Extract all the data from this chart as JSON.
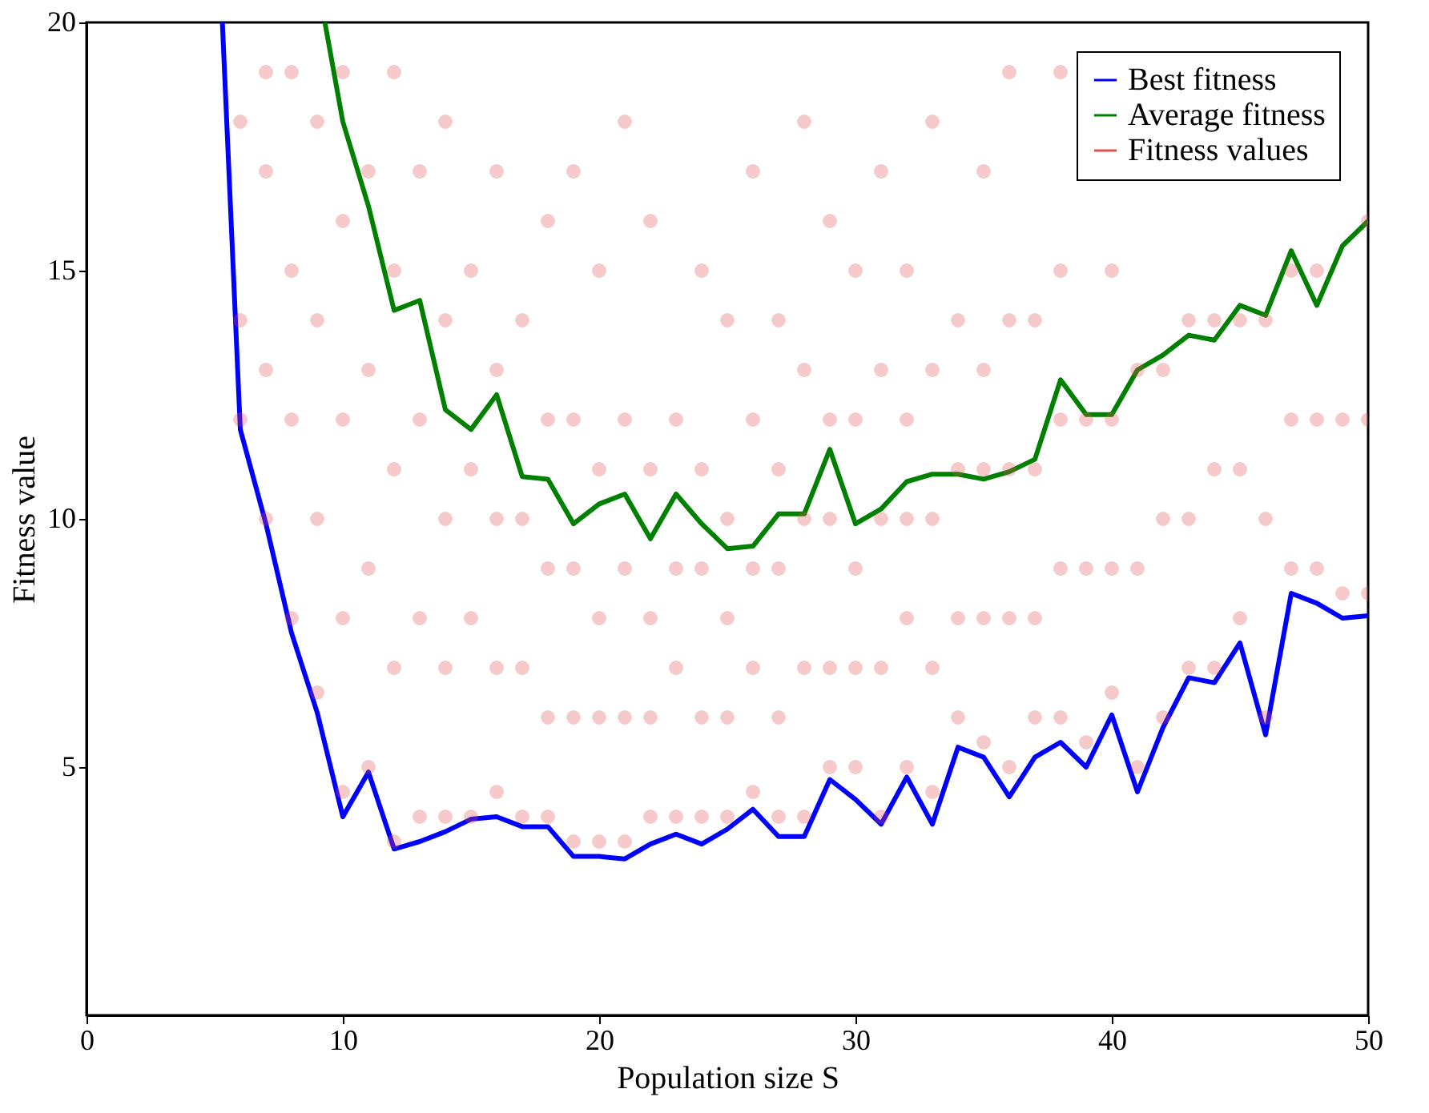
{
  "chart_data": {
    "type": "line",
    "xlabel": "Population size S",
    "ylabel": "Fitness value",
    "xlim": [
      0,
      50
    ],
    "xticks": [
      0,
      10,
      20,
      30,
      40,
      50
    ],
    "ylim": [
      0,
      20
    ],
    "yticks": [
      5,
      10,
      15,
      20
    ],
    "grid": false,
    "legend": "top right",
    "marker": "none",
    "line_style": "solid",
    "series": [
      {
        "name": "Best fitness",
        "type": "line",
        "color": "#0000ff",
        "x": [
          5.3,
          6,
          7,
          8,
          9,
          10,
          11,
          12,
          13,
          14,
          15,
          16,
          17,
          18,
          19,
          20,
          21,
          22,
          23,
          24,
          25,
          26,
          27,
          28,
          29,
          30,
          31,
          32,
          33,
          34,
          35,
          36,
          37,
          38,
          39,
          40,
          41,
          42,
          43,
          44,
          45,
          46,
          47,
          48,
          49,
          50
        ],
        "values": [
          20,
          11.8,
          9.9,
          7.7,
          6.1,
          4.0,
          4.9,
          3.35,
          3.5,
          3.7,
          3.95,
          4.0,
          3.8,
          3.8,
          3.2,
          3.2,
          3.15,
          3.45,
          3.65,
          3.45,
          3.75,
          4.15,
          3.6,
          3.6,
          4.75,
          4.35,
          3.85,
          4.8,
          3.85,
          5.4,
          5.2,
          4.4,
          5.2,
          5.5,
          5.0,
          6.05,
          4.5,
          5.8,
          6.8,
          6.7,
          7.5,
          5.65,
          8.5,
          8.3,
          8.0,
          8.05
        ]
      },
      {
        "name": "Average fitness",
        "type": "line",
        "color": "#008000",
        "x": [
          9.3,
          10,
          11,
          12,
          13,
          14,
          15,
          16,
          17,
          18,
          19,
          20,
          21,
          22,
          23,
          24,
          25,
          26,
          27,
          28,
          29,
          30,
          31,
          32,
          33,
          34,
          35,
          36,
          37,
          38,
          39,
          40,
          41,
          42,
          43,
          44,
          45,
          46,
          47,
          48,
          49,
          50
        ],
        "values": [
          20,
          18.0,
          16.3,
          14.2,
          14.4,
          12.2,
          11.8,
          12.5,
          10.85,
          10.8,
          9.9,
          10.3,
          10.5,
          9.6,
          10.5,
          9.9,
          9.4,
          9.45,
          10.1,
          10.1,
          11.4,
          9.9,
          10.2,
          10.75,
          10.9,
          10.9,
          10.8,
          10.95,
          11.2,
          12.8,
          12.1,
          12.1,
          13.0,
          13.3,
          13.7,
          13.6,
          14.3,
          14.1,
          15.4,
          14.3,
          15.5,
          16.0
        ]
      },
      {
        "name": "Fitness values",
        "type": "scatter",
        "marker": "circle",
        "color": "#e05050",
        "x": [
          6,
          6,
          6,
          7,
          7,
          7,
          7,
          8,
          8,
          8,
          8,
          9,
          9,
          9,
          9,
          10,
          10,
          10,
          10,
          10,
          11,
          11,
          11,
          11,
          12,
          12,
          12,
          12,
          12,
          13,
          13,
          13,
          13,
          14,
          14,
          14,
          14,
          14,
          15,
          15,
          15,
          15,
          16,
          16,
          16,
          16,
          16,
          17,
          17,
          17,
          17,
          18,
          18,
          18,
          18,
          18,
          19,
          19,
          19,
          19,
          19,
          20,
          20,
          20,
          20,
          20,
          21,
          21,
          21,
          21,
          21,
          22,
          22,
          22,
          22,
          22,
          23,
          23,
          23,
          23,
          24,
          24,
          24,
          24,
          24,
          25,
          25,
          25,
          25,
          25,
          26,
          26,
          26,
          26,
          26,
          27,
          27,
          27,
          27,
          27,
          28,
          28,
          28,
          28,
          28,
          29,
          29,
          29,
          29,
          29,
          30,
          30,
          30,
          30,
          30,
          31,
          31,
          31,
          31,
          31,
          32,
          32,
          32,
          32,
          32,
          33,
          33,
          33,
          33,
          33,
          34,
          34,
          34,
          34,
          35,
          35,
          35,
          35,
          35,
          36,
          36,
          36,
          36,
          36,
          37,
          37,
          37,
          37,
          38,
          38,
          38,
          38,
          38,
          39,
          39,
          39,
          40,
          40,
          40,
          40,
          41,
          41,
          41,
          42,
          42,
          42,
          43,
          43,
          43,
          44,
          44,
          44,
          45,
          45,
          45,
          46,
          46,
          46,
          47,
          47,
          47,
          48,
          48,
          48,
          49,
          49,
          50,
          50,
          50
        ],
        "values": [
          12,
          14,
          18,
          10,
          13,
          17,
          19,
          8,
          12,
          15,
          19,
          6.5,
          10,
          14,
          18,
          4.5,
          8,
          12,
          16,
          19,
          5,
          9,
          13,
          17,
          3.5,
          7,
          11,
          15,
          19,
          4,
          8,
          12,
          17,
          4,
          7,
          10,
          14,
          18,
          4,
          8,
          11,
          15,
          4.5,
          7,
          10,
          13,
          17,
          4,
          7,
          10,
          14,
          4,
          6,
          9,
          12,
          16,
          3.5,
          6,
          9,
          12,
          17,
          3.5,
          6,
          8,
          11,
          15,
          3.5,
          6,
          9,
          12,
          18,
          4,
          6,
          8,
          11,
          16,
          4,
          7,
          9,
          12,
          4,
          6,
          9,
          11,
          15,
          4,
          6,
          8,
          10,
          14,
          4.5,
          7,
          9,
          12,
          17,
          4,
          6,
          9,
          11,
          14,
          4,
          7,
          10,
          13,
          18,
          5,
          7,
          10,
          12,
          16,
          5,
          7,
          9,
          12,
          15,
          4,
          7,
          10,
          13,
          17,
          5,
          8,
          10,
          12,
          15,
          4.5,
          7,
          10,
          13,
          18,
          6,
          8,
          11,
          14,
          5.5,
          8,
          11,
          13,
          17,
          5,
          8,
          11,
          14,
          19,
          6,
          8,
          11,
          14,
          6,
          9,
          12,
          15,
          19,
          5.5,
          9,
          12,
          6.5,
          9,
          12,
          15,
          5,
          9,
          13,
          6,
          10,
          13,
          7,
          10,
          14,
          7,
          11,
          14,
          8,
          11,
          14,
          6,
          10,
          14,
          9,
          12,
          15,
          9,
          12,
          15,
          8.5,
          12,
          8.5,
          12,
          16
        ]
      }
    ]
  }
}
